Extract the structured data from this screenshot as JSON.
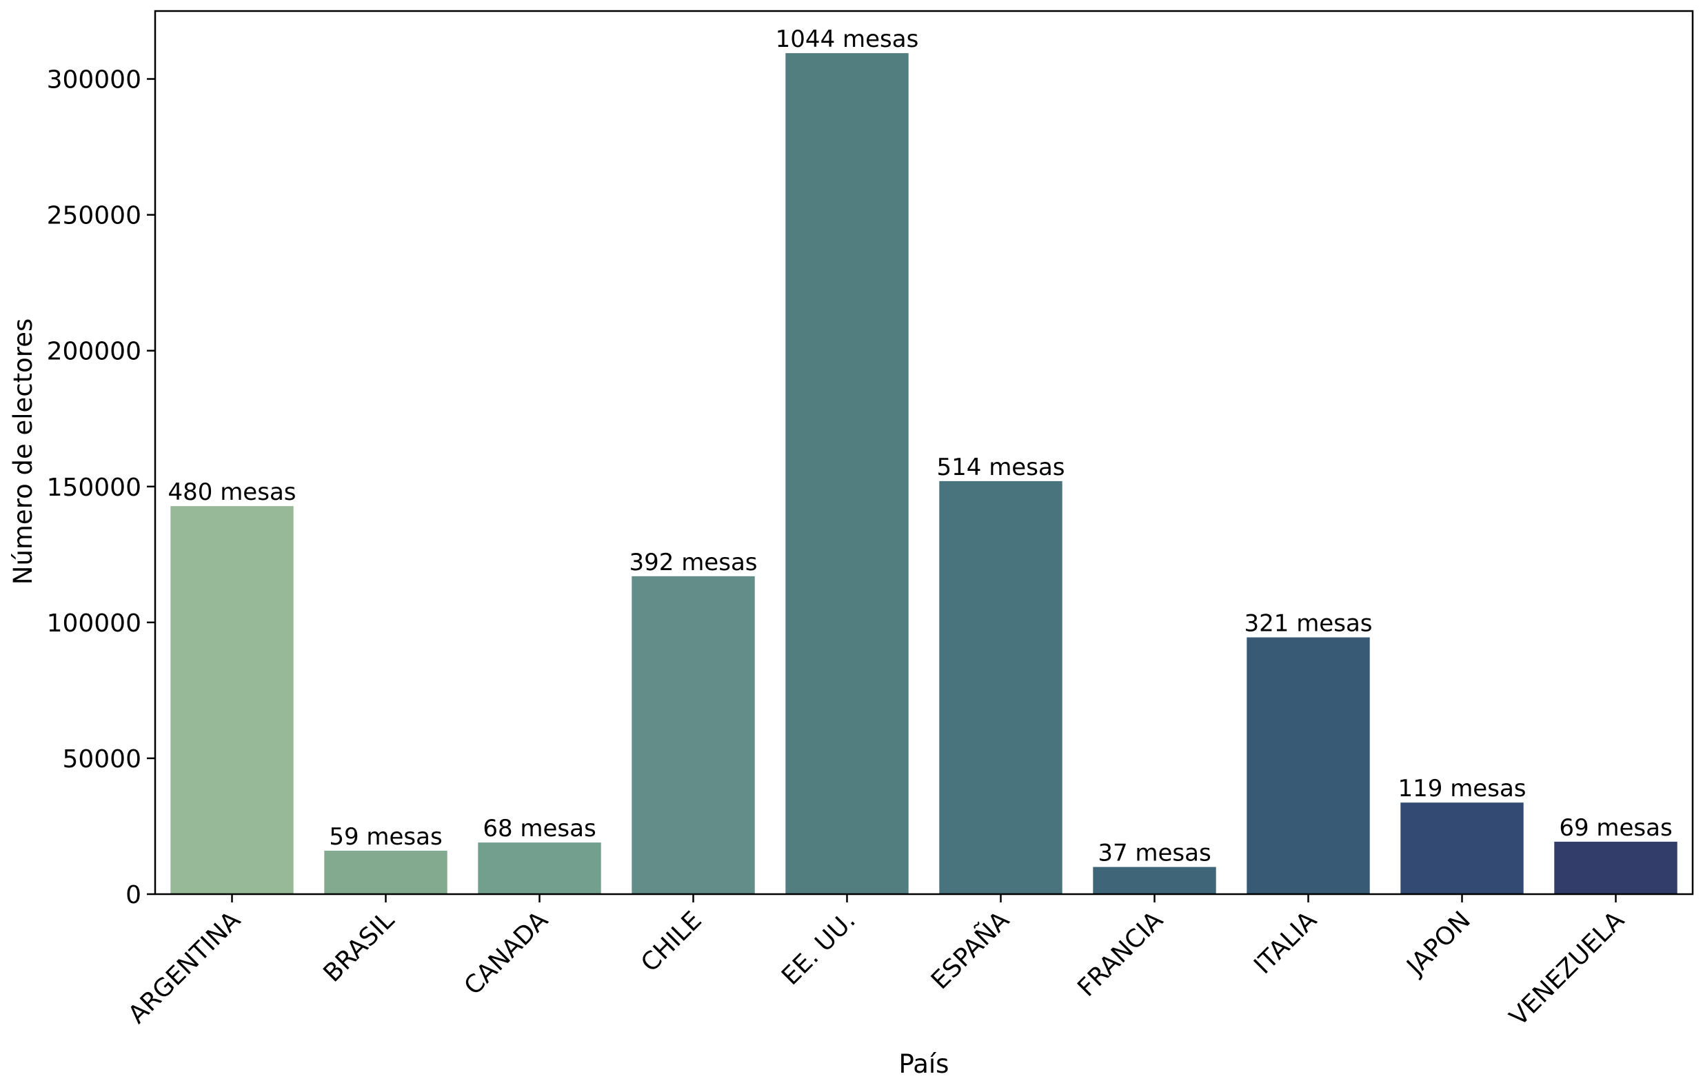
{
  "chart_data": {
    "type": "bar",
    "title": "",
    "xlabel": "País",
    "ylabel": "Número de electores",
    "categories": [
      "ARGENTINA",
      "BRASIL",
      "CANADA",
      "CHILE",
      "EE. UU.",
      "ESPAÑA",
      "FRANCIA",
      "ITALIA",
      "JAPON",
      "VENEZUELA"
    ],
    "values": [
      142800,
      16000,
      19000,
      117000,
      309500,
      152000,
      10000,
      94500,
      33700,
      19300
    ],
    "bar_labels": [
      "480 mesas",
      "59 mesas",
      "68 mesas",
      "392 mesas",
      "1044 mesas",
      "514 mesas",
      "37 mesas",
      "321 mesas",
      "119 mesas",
      "69 mesas"
    ],
    "colors": [
      "#98b997",
      "#83aa8f",
      "#73a08e",
      "#628d88",
      "#527e7f",
      "#49737d",
      "#3f6678",
      "#385a74",
      "#334b72",
      "#333d69"
    ],
    "ylim": [
      0,
      325000
    ],
    "yticks": [
      0,
      50000,
      100000,
      150000,
      200000,
      250000,
      300000
    ],
    "grid": false,
    "legend": "none"
  }
}
